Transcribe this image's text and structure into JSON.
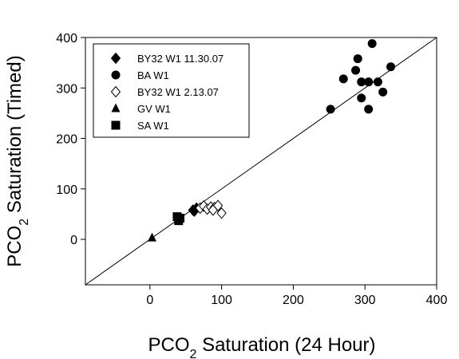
{
  "chart_data": {
    "type": "scatter",
    "xlabel": {
      "main": "PCO",
      "sub": "2",
      "rest": " Saturation (24 Hour)"
    },
    "ylabel": {
      "main": "PCO",
      "sub": "2",
      "rest": " Saturation (Timed)"
    },
    "xlim": [
      -90,
      400
    ],
    "ylim": [
      -90,
      400
    ],
    "xticks": [
      0,
      100,
      200,
      300,
      400
    ],
    "yticks": [
      0,
      100,
      200,
      300,
      400
    ],
    "reference_line": {
      "type": "1:1",
      "from": [
        -90,
        -90
      ],
      "to": [
        400,
        400
      ]
    },
    "legend_position": "top-left",
    "series": [
      {
        "name": "BY32 W1 11.30.07",
        "marker": "diamond-filled",
        "points": [
          [
            60,
            58
          ],
          [
            65,
            62
          ],
          [
            62,
            56
          ]
        ]
      },
      {
        "name": "BA W1",
        "marker": "circle-filled",
        "points": [
          [
            252,
            258
          ],
          [
            270,
            318
          ],
          [
            287,
            335
          ],
          [
            290,
            358
          ],
          [
            295,
            312
          ],
          [
            295,
            280
          ],
          [
            305,
            312
          ],
          [
            305,
            258
          ],
          [
            310,
            388
          ],
          [
            318,
            312
          ],
          [
            325,
            292
          ],
          [
            336,
            342
          ]
        ]
      },
      {
        "name": "BY32 W1 2.13.07",
        "marker": "diamond-open",
        "points": [
          [
            70,
            62
          ],
          [
            75,
            66
          ],
          [
            80,
            60
          ],
          [
            85,
            64
          ],
          [
            90,
            63
          ],
          [
            95,
            67
          ],
          [
            100,
            52
          ],
          [
            88,
            58
          ]
        ]
      },
      {
        "name": "GV W1",
        "marker": "triangle-filled",
        "points": [
          [
            3,
            3
          ]
        ]
      },
      {
        "name": "SA W1",
        "marker": "square-filled",
        "points": [
          [
            38,
            45
          ],
          [
            40,
            37
          ],
          [
            42,
            42
          ]
        ]
      }
    ]
  }
}
